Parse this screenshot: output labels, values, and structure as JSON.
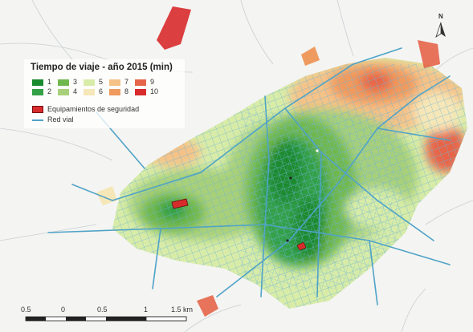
{
  "legend": {
    "title": "Tiempo de viaje - año 2015 (min)",
    "classes": [
      {
        "label": "1",
        "color": "#1a8a2e"
      },
      {
        "label": "2",
        "color": "#33a046"
      },
      {
        "label": "3",
        "color": "#70b84e"
      },
      {
        "label": "4",
        "color": "#a8d07a"
      },
      {
        "label": "5",
        "color": "#d8eca8"
      },
      {
        "label": "6",
        "color": "#f6e7b8"
      },
      {
        "label": "7",
        "color": "#f5c288"
      },
      {
        "label": "8",
        "color": "#ef9a5e"
      },
      {
        "label": "9",
        "color": "#e6654a"
      },
      {
        "label": "10",
        "color": "#d82b2b"
      }
    ],
    "security_label": "Equipamientos de seguridad",
    "security_color": "#d82b2b",
    "roads_label": "Red vial",
    "roads_color": "#4fa3c7"
  },
  "scale": {
    "labels": [
      "0.5",
      "0",
      "0.5",
      "1",
      "1.5 km"
    ]
  },
  "north": {
    "label": "N",
    "icon": "north-arrow-icon"
  }
}
